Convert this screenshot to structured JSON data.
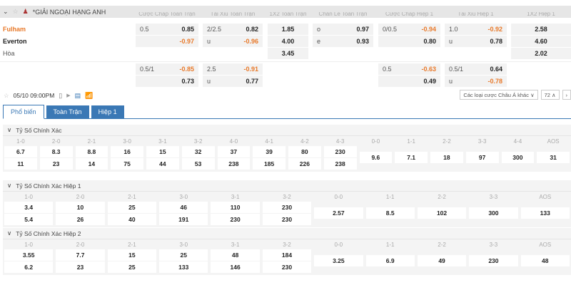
{
  "league": {
    "name": "*GIẢI NGOẠI HẠNG ANH",
    "icons": [
      "chevron-down-icon",
      "star-icon",
      "league-icon"
    ]
  },
  "headers": [
    "Cược Chấp Toàn Trận",
    "Tài Xỉu Toàn Trận",
    "1X2 Toàn Trận",
    "Chẵn Lẻ Toàn Trận",
    "Cược Chấp Hiệp 1",
    "Tài Xỉu Hiệp 1",
    "1X2 Hiệp 1"
  ],
  "teams": {
    "home": "Fulham",
    "away": "Everton",
    "draw": "Hòa"
  },
  "colors": {
    "accent": "#3a78b5",
    "negative": "#e8792a",
    "home": "#e8792a"
  },
  "odds_rows": [
    [
      [
        "0.5",
        "0.85"
      ],
      [
        "2/2.5",
        "0.82"
      ],
      [
        "",
        "1.85"
      ],
      [
        "o",
        "0.97"
      ],
      [
        "0/0.5",
        "-0.94"
      ],
      [
        "1.0",
        "-0.92"
      ],
      [
        "",
        "2.58"
      ]
    ],
    [
      [
        "",
        "-0.97"
      ],
      [
        "u",
        "-0.96"
      ],
      [
        "",
        "4.00"
      ],
      [
        "e",
        "0.93"
      ],
      [
        "",
        "0.80"
      ],
      [
        "u",
        "0.78"
      ],
      [
        "",
        "4.60"
      ]
    ],
    [
      null,
      null,
      [
        "",
        "3.45"
      ],
      null,
      null,
      null,
      [
        "",
        "2.02"
      ]
    ],
    [
      [
        "0.5/1",
        "-0.85"
      ],
      [
        "2.5",
        "-0.91"
      ],
      null,
      null,
      [
        "0.5",
        "-0.63"
      ],
      [
        "0.5/1",
        "0.64"
      ],
      null
    ],
    [
      [
        "",
        "0.73"
      ],
      [
        "u",
        "0.77"
      ],
      null,
      null,
      [
        "",
        "0.49"
      ],
      [
        "u",
        "-0.78"
      ],
      null
    ]
  ],
  "toolbar": {
    "datetime": "05/10 09:00PM",
    "market_select": "Các loại cược Châu Á khác",
    "count": "72"
  },
  "tabs": [
    {
      "label": "Phổ biến",
      "active": true
    },
    {
      "label": "Toàn Trận"
    },
    {
      "label": "Hiệp 1"
    }
  ],
  "sections": [
    {
      "title": "Tỷ Số Chính Xác",
      "scores": [
        "1-0",
        "2-0",
        "2-1",
        "3-0",
        "3-1",
        "3-2",
        "4-0",
        "4-1",
        "4-2",
        "4-3"
      ],
      "home": [
        "6.7",
        "8.3",
        "8.8",
        "16",
        "15",
        "32",
        "37",
        "39",
        "80",
        "230"
      ],
      "away": [
        "11",
        "23",
        "14",
        "75",
        "44",
        "53",
        "238",
        "185",
        "226",
        "238"
      ],
      "draw_labels": [
        "0-0",
        "1-1",
        "2-2",
        "3-3",
        "4-4",
        "AOS"
      ],
      "draw": [
        "9.6",
        "7.1",
        "18",
        "97",
        "300",
        "31"
      ]
    },
    {
      "title": "Tỷ Số Chính Xác Hiệp 1",
      "scores": [
        "1-0",
        "2-0",
        "2-1",
        "3-0",
        "3-1",
        "3-2"
      ],
      "home": [
        "3.4",
        "10",
        "25",
        "46",
        "110",
        "230"
      ],
      "away": [
        "5.4",
        "26",
        "40",
        "191",
        "230",
        "230"
      ],
      "draw_labels": [
        "0-0",
        "1-1",
        "2-2",
        "3-3",
        "AOS"
      ],
      "draw": [
        "2.57",
        "8.5",
        "102",
        "300",
        "133"
      ]
    },
    {
      "title": "Tỷ Số Chính Xác Hiệp 2",
      "scores": [
        "1-0",
        "2-0",
        "2-1",
        "3-0",
        "3-1",
        "3-2"
      ],
      "home": [
        "3.55",
        "7.7",
        "15",
        "25",
        "48",
        "184"
      ],
      "away": [
        "6.2",
        "23",
        "25",
        "133",
        "146",
        "230"
      ],
      "draw_labels": [
        "0-0",
        "1-1",
        "2-2",
        "3-3",
        "AOS"
      ],
      "draw": [
        "3.25",
        "6.9",
        "49",
        "230",
        "48"
      ]
    }
  ]
}
